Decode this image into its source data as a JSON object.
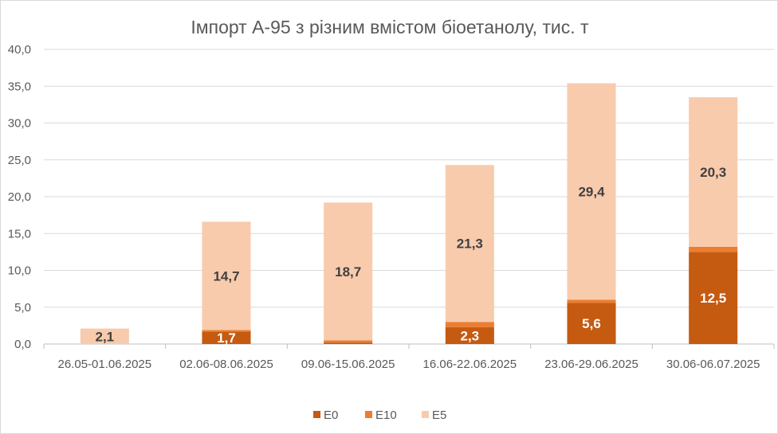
{
  "chart_data": {
    "type": "bar",
    "stacked": true,
    "title": "Імпорт А-95 з різним вмістом біоетанолу, тис. т",
    "xlabel": "",
    "ylabel": "",
    "ylim": [
      0,
      40
    ],
    "yticks": [
      "0,0",
      "5,0",
      "10,0",
      "15,0",
      "20,0",
      "25,0",
      "30,0",
      "35,0",
      "40,0"
    ],
    "grid": true,
    "legend_position": "bottom",
    "categories": [
      "26.05-01.06.2025",
      "02.06-08.06.2025",
      "09.06-15.06.2025",
      "16.06-22.06.2025",
      "23.06-29.06.2025",
      "30.06-06.07.2025"
    ],
    "series": [
      {
        "name": "E0",
        "color": "#c55a11",
        "label_color": "#ffffff",
        "values": [
          0,
          1.7,
          0.2,
          2.3,
          5.6,
          12.5
        ],
        "labels": [
          "",
          "1,7",
          "",
          "2,3",
          "5,6",
          "12,5"
        ]
      },
      {
        "name": "E10",
        "color": "#ed7d31",
        "label_color": "#404040",
        "values": [
          0,
          0.2,
          0.3,
          0.7,
          0.4,
          0.7
        ],
        "labels": [
          "",
          "",
          "",
          "",
          "",
          ""
        ]
      },
      {
        "name": "E5",
        "color": "#f8cbad",
        "label_color": "#404040",
        "values": [
          2.1,
          14.7,
          18.7,
          21.3,
          29.4,
          20.3
        ],
        "labels": [
          "2,1",
          "14,7",
          "18,7",
          "21,3",
          "29,4",
          "20,3"
        ]
      }
    ]
  }
}
